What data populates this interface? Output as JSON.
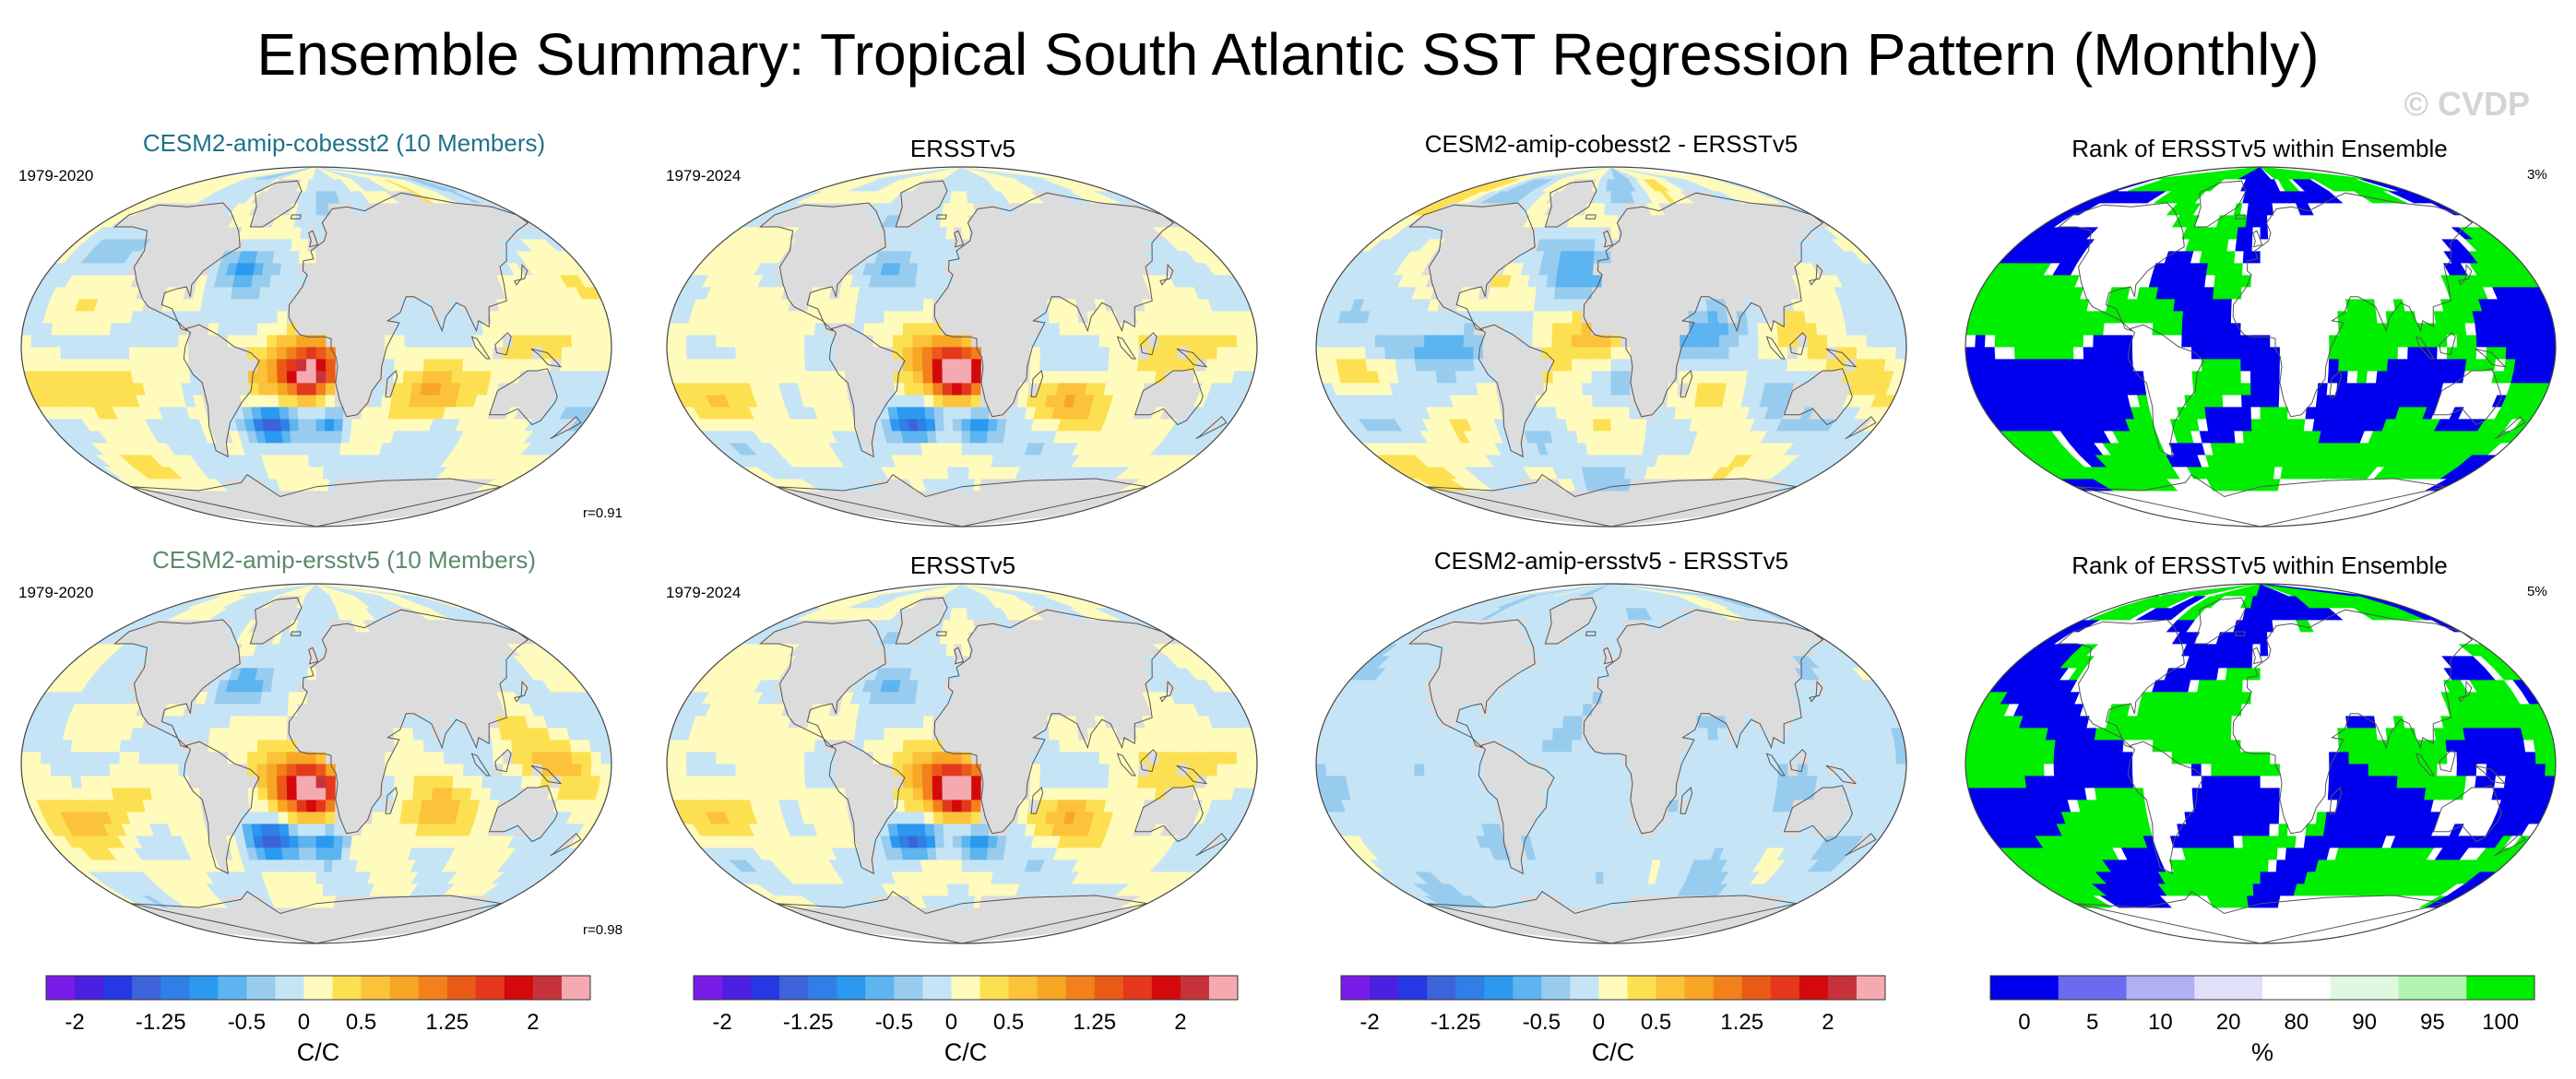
{
  "title": "Ensemble Summary: Tropical South Atlantic SST Regression Pattern (Monthly)",
  "watermark": "© CVDP",
  "colors": {
    "ocean_light_blue": "#b7dcf2",
    "ocean_mid_blue": "#6fbfee",
    "ocean_blue": "#2aa2ee",
    "light_yellow": "#fff4a4",
    "yellow": "#fde052",
    "orange": "#f7a724",
    "dark_orange": "#f2801c",
    "red": "#e4381c",
    "land_gray": "#dcdcdc",
    "rank_blue": "#0000ee",
    "rank_green": "#00ee00"
  },
  "chart_data": [
    {
      "type": "heatmap",
      "panel": "row1-ensemble",
      "title": "CESM2-amip-cobesst2 (10 Members)",
      "period": "1979-2020",
      "corr": "r=0.91",
      "title_color": "#1f7189"
    },
    {
      "type": "heatmap",
      "panel": "row1-obs",
      "title": "ERSSTv5",
      "period": "1979-2024"
    },
    {
      "type": "heatmap",
      "panel": "row1-diff",
      "title": "CESM2-amip-cobesst2 - ERSSTv5"
    },
    {
      "type": "heatmap",
      "panel": "row1-rank",
      "title": "Rank of ERSSTv5 within Ensemble",
      "pct": "3%"
    },
    {
      "type": "heatmap",
      "panel": "row2-ensemble",
      "title": "CESM2-amip-ersstv5 (10 Members)",
      "period": "1979-2020",
      "corr": "r=0.98",
      "title_color": "#5b8a6b"
    },
    {
      "type": "heatmap",
      "panel": "row2-obs",
      "title": "ERSSTv5",
      "period": "1979-2024"
    },
    {
      "type": "heatmap",
      "panel": "row2-diff",
      "title": "CESM2-amip-ersstv5 - ERSSTv5"
    },
    {
      "type": "heatmap",
      "panel": "row2-rank",
      "title": "Rank of ERSSTv5 within Ensemble",
      "pct": "5%"
    }
  ],
  "colorbars": {
    "sst": {
      "units": "C/C",
      "ticks": [
        "-2",
        "-1.25",
        "-0.5",
        "0",
        "0.5",
        "1.25",
        "2"
      ],
      "tick_values": [
        -2,
        -1.25,
        -0.5,
        0,
        0.5,
        1.25,
        2
      ],
      "levels": [
        -2.25,
        -2,
        -1.75,
        -1.5,
        -1.25,
        -1,
        -0.75,
        -0.5,
        -0.25,
        0,
        0.25,
        0.5,
        0.75,
        1,
        1.25,
        1.5,
        1.75,
        2,
        2.25
      ],
      "colors": [
        "#7a1ce8",
        "#4b20e0",
        "#2638e2",
        "#3d63d8",
        "#2f7fe6",
        "#2a99ef",
        "#5cb4f0",
        "#98ccee",
        "#c5e4f6",
        "#fffbbc",
        "#fde052",
        "#fbc23a",
        "#f7a724",
        "#f2801c",
        "#ea5a17",
        "#e4381c",
        "#d4090b",
        "#c8323a",
        "#f4aab0"
      ]
    },
    "rank": {
      "units": "%",
      "ticks": [
        "0",
        "5",
        "10",
        "20",
        "80",
        "90",
        "95",
        "100"
      ],
      "tick_values": [
        0,
        5,
        10,
        20,
        80,
        90,
        95,
        100
      ],
      "colors": [
        "#0000ee",
        "#6b6bf0",
        "#b0b0f4",
        "#e0e0f8",
        "#ffffff",
        "#e0f8e0",
        "#b0f4b0",
        "#00ee00"
      ]
    }
  }
}
